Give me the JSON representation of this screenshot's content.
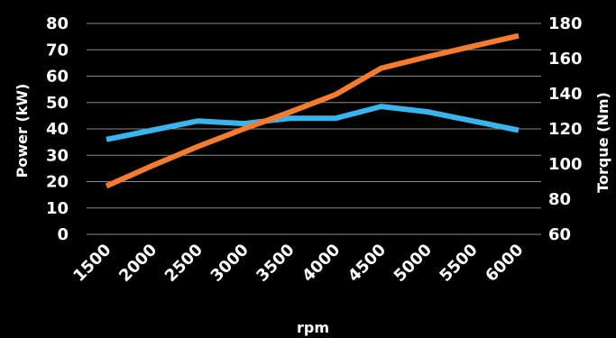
{
  "chart_data": {
    "type": "line",
    "title": "",
    "xlabel": "rpm",
    "ylabel_left": "Power (kW)",
    "ylabel_right": "Torque (Nm)",
    "categories": [
      "1500",
      "2000",
      "2500",
      "3000",
      "3500",
      "4000",
      "4500",
      "5000",
      "5500",
      "6000"
    ],
    "ylim_left": [
      0,
      80
    ],
    "yticks_left": [
      "0",
      "10",
      "20",
      "30",
      "40",
      "50",
      "60",
      "70",
      "80"
    ],
    "ylim_right": [
      60,
      180
    ],
    "yticks_right": [
      "60",
      "80",
      "100",
      "120",
      "140",
      "160",
      "180"
    ],
    "grid": true,
    "series": [
      {
        "axis": "left",
        "color": "#3ab4ec",
        "values": [
          36,
          39.5,
          43,
          42,
          44,
          44,
          48.5,
          46.5,
          43,
          39.5
        ]
      },
      {
        "axis": "right",
        "color": "#f47c30",
        "values": [
          87.5,
          99,
          110,
          120,
          129.5,
          139.5,
          154.5,
          161,
          167,
          173
        ]
      }
    ]
  }
}
